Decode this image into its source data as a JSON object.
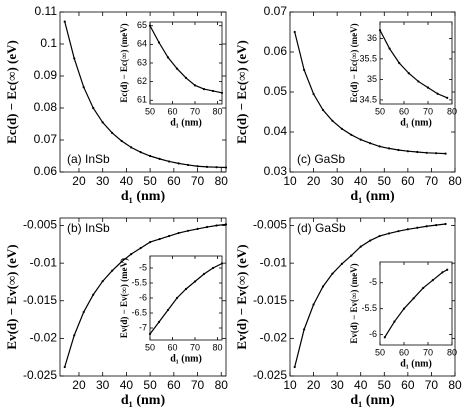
{
  "chart_data": [
    {
      "type": "line",
      "annotation": "(a) InSb",
      "x_label": "d₁ (nm)",
      "y_label": "Ec(d) − Ec(∞) (eV)",
      "color": "#000000",
      "xlim": [
        12,
        82
      ],
      "ylim": [
        0.06,
        0.11
      ],
      "xticks": [
        20,
        30,
        40,
        50,
        60,
        70,
        80
      ],
      "yticks": [
        0.06,
        0.07,
        0.08,
        0.09,
        0.1,
        0.11
      ],
      "x": [
        14,
        18,
        22,
        26,
        30,
        34,
        38,
        42,
        46,
        50,
        54,
        58,
        62,
        66,
        70,
        74,
        78,
        82
      ],
      "values": [
        0.107,
        0.0955,
        0.0865,
        0.08,
        0.0755,
        0.0722,
        0.0697,
        0.0677,
        0.0662,
        0.065,
        0.0641,
        0.0633,
        0.0627,
        0.0622,
        0.0618,
        0.0616,
        0.0615,
        0.0614
      ]
    },
    {
      "type": "line",
      "x_label": "d₁ (nm)",
      "y_label": "Ec(d) − Ec(∞) (meV)",
      "color": "#000000",
      "xlim": [
        50,
        82
      ],
      "ylim": [
        60.8,
        65.2
      ],
      "xticks": [
        50,
        60,
        70,
        80
      ],
      "yticks": [
        61,
        62,
        63,
        64,
        65
      ],
      "x": [
        50,
        54,
        58,
        62,
        66,
        70,
        74,
        78,
        82
      ],
      "values": [
        65,
        64.1,
        63.3,
        62.7,
        62.2,
        61.8,
        61.6,
        61.5,
        61.4
      ]
    },
    {
      "type": "line",
      "annotation": "(c) GaSb",
      "x_label": "d₁ (nm)",
      "y_label": "Ec(d) − Ec(∞) (eV)",
      "color": "#000000",
      "xlim": [
        10,
        80
      ],
      "ylim": [
        0.03,
        0.07
      ],
      "xticks": [
        10,
        20,
        30,
        40,
        50,
        60,
        70,
        80
      ],
      "yticks": [
        0.03,
        0.04,
        0.05,
        0.06,
        0.07
      ],
      "x": [
        12,
        16,
        20,
        24,
        28,
        32,
        36,
        40,
        44,
        48,
        52,
        56,
        60,
        64,
        68,
        72,
        76
      ],
      "values": [
        0.065,
        0.0555,
        0.0495,
        0.0455,
        0.0428,
        0.0408,
        0.0393,
        0.0381,
        0.0372,
        0.0364,
        0.0359,
        0.0355,
        0.0352,
        0.035,
        0.0348,
        0.0347,
        0.0346
      ]
    },
    {
      "type": "line",
      "x_label": "d₁ (nm)",
      "y_label": "Ec(d) − Ec(∞) (meV)",
      "color": "#000000",
      "xlim": [
        50,
        80
      ],
      "ylim": [
        34.4,
        36.4
      ],
      "xticks": [
        50,
        60,
        70,
        80
      ],
      "yticks": [
        34.5,
        35,
        35.5,
        36
      ],
      "x": [
        50,
        54,
        58,
        62,
        66,
        70,
        74,
        78
      ],
      "values": [
        36.2,
        35.75,
        35.4,
        35.15,
        34.95,
        34.8,
        34.65,
        34.55
      ]
    },
    {
      "type": "line",
      "annotation": "(b) InSb",
      "x_label": "d₁ (nm)",
      "y_label": "Ev(d) − Ev(∞) (eV)",
      "color": "#000000",
      "xlim": [
        12,
        82
      ],
      "ylim": [
        -0.025,
        -0.004
      ],
      "xticks": [
        20,
        30,
        40,
        50,
        60,
        70,
        80
      ],
      "yticks": [
        -0.025,
        -0.02,
        -0.015,
        -0.01,
        -0.005
      ],
      "x": [
        14,
        18,
        22,
        26,
        30,
        34,
        38,
        42,
        46,
        50,
        54,
        58,
        62,
        66,
        70,
        74,
        78,
        82
      ],
      "values": [
        -0.0238,
        -0.0196,
        -0.0165,
        -0.0142,
        -0.0124,
        -0.011,
        -0.0098,
        -0.0088,
        -0.008,
        -0.0072,
        -0.0068,
        -0.0064,
        -0.006,
        -0.0057,
        -0.00545,
        -0.0052,
        -0.005,
        -0.00485
      ]
    },
    {
      "type": "line",
      "x_label": "d₁ (nm)",
      "y_label": "Ev(d) − Ev(∞) (meV)",
      "color": "#000000",
      "xlim": [
        50,
        82
      ],
      "ylim": [
        -7.4,
        -4.6
      ],
      "xticks": [
        50,
        60,
        70,
        80
      ],
      "yticks": [
        -7,
        -6.5,
        -6,
        -5.5,
        -5
      ],
      "x": [
        50,
        54,
        58,
        62,
        66,
        70,
        74,
        78,
        82
      ],
      "values": [
        -7.2,
        -6.8,
        -6.4,
        -6,
        -5.7,
        -5.45,
        -5.2,
        -5,
        -4.85
      ]
    },
    {
      "type": "line",
      "annotation": "(d) GaSb",
      "x_label": "d₁ (nm)",
      "y_label": "Ev(d) − Ev(∞) (eV)",
      "color": "#000000",
      "xlim": [
        10,
        80
      ],
      "ylim": [
        -0.025,
        -0.004
      ],
      "xticks": [
        10,
        20,
        30,
        40,
        50,
        60,
        70,
        80
      ],
      "yticks": [
        -0.025,
        -0.02,
        -0.015,
        -0.01,
        -0.005
      ],
      "x": [
        12,
        16,
        20,
        24,
        28,
        32,
        36,
        40,
        44,
        48,
        52,
        56,
        60,
        64,
        68,
        72,
        76
      ],
      "values": [
        -0.0238,
        -0.0188,
        -0.0155,
        -0.0131,
        -0.0114,
        -0.0101,
        -0.009,
        -0.0078,
        -0.007,
        -0.0064,
        -0.00605,
        -0.00575,
        -0.0055,
        -0.0053,
        -0.0051,
        -0.00495,
        -0.0048
      ]
    },
    {
      "type": "line",
      "x_label": "d₁ (nm)",
      "y_label": "Ev(d) − Ev(∞) (meV)",
      "color": "#000000",
      "xlim": [
        50,
        80
      ],
      "ylim": [
        -6.2,
        -4.6
      ],
      "xticks": [
        50,
        60,
        70,
        80
      ],
      "yticks": [
        -6,
        -5.5,
        -5
      ],
      "x": [
        52,
        56,
        60,
        64,
        68,
        72,
        76,
        78
      ],
      "values": [
        -6.05,
        -5.75,
        -5.5,
        -5.3,
        -5.1,
        -4.95,
        -4.8,
        -4.75
      ]
    }
  ]
}
